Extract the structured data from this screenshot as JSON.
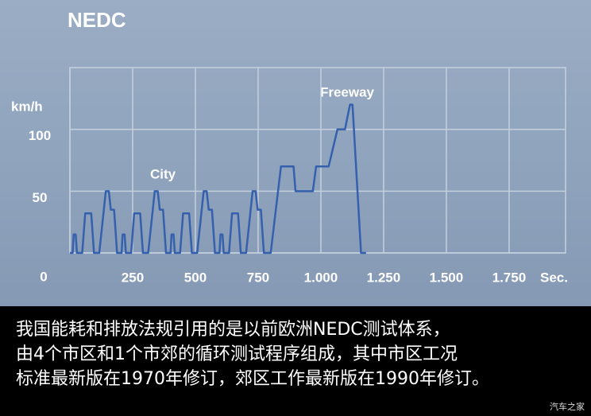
{
  "chart_data": {
    "type": "line",
    "title": "NEDC",
    "y_label": "km/h",
    "x_label": "Sec.",
    "annotations": [
      "City",
      "Freeway"
    ],
    "series": [
      {
        "name": "NEDC",
        "color": "#3560ad",
        "x": [
          0,
          11,
          15,
          23,
          28,
          49,
          61,
          85,
          96,
          117,
          143,
          155,
          163,
          176,
          188,
          195,
          206,
          210,
          218,
          223,
          244,
          256,
          280,
          291,
          312,
          338,
          350,
          358,
          371,
          383,
          390,
          401,
          405,
          413,
          418,
          439,
          451,
          475,
          486,
          507,
          533,
          545,
          553,
          566,
          578,
          585,
          596,
          600,
          608,
          613,
          634,
          646,
          670,
          681,
          702,
          728,
          740,
          748,
          761,
          773,
          800,
          841,
          891,
          899,
          968,
          981,
          1031,
          1066,
          1096,
          1116,
          1126,
          1160,
          1180
        ],
        "values": [
          0,
          0,
          15,
          15,
          0,
          0,
          32,
          32,
          0,
          0,
          50,
          50,
          35,
          35,
          0,
          0,
          0,
          15,
          15,
          0,
          0,
          32,
          32,
          0,
          0,
          50,
          50,
          35,
          35,
          0,
          0,
          0,
          15,
          15,
          0,
          0,
          32,
          32,
          0,
          0,
          50,
          50,
          35,
          35,
          0,
          0,
          0,
          15,
          15,
          0,
          0,
          32,
          32,
          0,
          0,
          50,
          50,
          35,
          35,
          0,
          0,
          70,
          70,
          50,
          50,
          70,
          70,
          100,
          100,
          120,
          120,
          0,
          0
        ]
      }
    ],
    "xlim": [
      0,
      1975
    ],
    "ylim": [
      0,
      150
    ],
    "xticks": [
      0,
      250,
      500,
      750,
      {
        "value": 1000,
        "label": "1.000"
      },
      {
        "value": 1250,
        "label": "1.250"
      },
      {
        "value": 1500,
        "label": "1.500"
      },
      {
        "value": 1750,
        "label": "1.750"
      }
    ],
    "yticks": [
      0,
      50,
      100
    ],
    "grid": true
  },
  "caption": {
    "lines": [
      "我国能耗和排放法规引用的是以前欧洲NEDC测试体系，",
      "由4个市区和1个市郊的循环测试程序组成，其中市区工况",
      "标准最新版在1970年修订，郊区工作最新版在1990年修订。"
    ]
  },
  "watermark": "汽车之家"
}
